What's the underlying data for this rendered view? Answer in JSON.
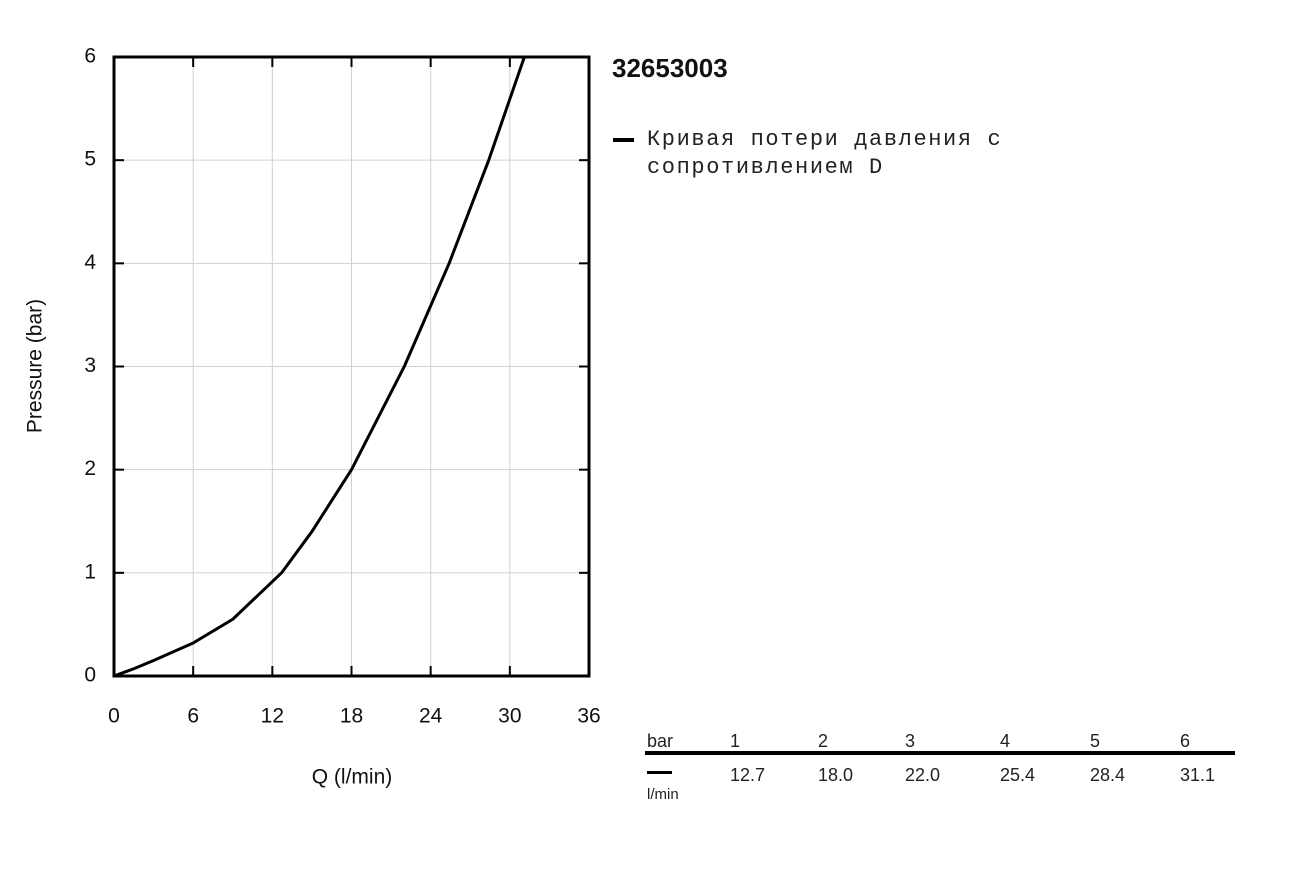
{
  "chart_data": {
    "type": "line",
    "title": "32653003",
    "xlabel": "Q (l/min)",
    "ylabel": "Pressure (bar)",
    "series": [
      {
        "name": "Кривая потери давления с сопротивлением D",
        "color": "#000000",
        "x": [
          0,
          1.5,
          3,
          6,
          9,
          12.7,
          15,
          18,
          22,
          25.4,
          28.4,
          31.1
        ],
        "values": [
          0,
          0.07,
          0.15,
          0.32,
          0.55,
          1,
          1.4,
          2,
          3,
          4,
          5,
          6
        ]
      }
    ],
    "xlim": [
      0,
      36
    ],
    "ylim": [
      0,
      6
    ],
    "xticks": [
      0,
      6,
      12,
      18,
      24,
      30,
      36
    ],
    "yticks": [
      0,
      1,
      2,
      3,
      4,
      5,
      6
    ],
    "grid": true
  },
  "table": {
    "header": [
      "bar",
      "1",
      "2",
      "3",
      "4",
      "5",
      "6"
    ],
    "unit": "l/min",
    "values": [
      "12.7",
      "18.0",
      "22.0",
      "25.4",
      "28.4",
      "31.1"
    ]
  }
}
